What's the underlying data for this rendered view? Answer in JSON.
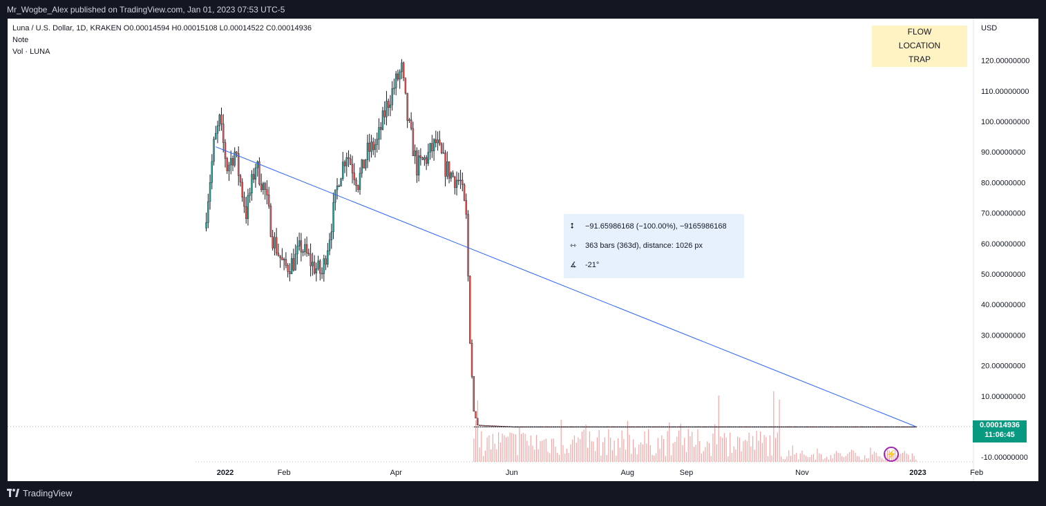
{
  "header": {
    "publish_line": "Mr_Wogbe_Alex published on TradingView.com, Jan 01, 2023 07:53 UTC-5"
  },
  "legend": {
    "ohlc": "Luna / U.S. Dollar, 1D, KRAKEN  O0.00014594  H0.00015108  L0.00014522  C0.00014936",
    "note": "Note",
    "volume": "Vol · LUNA"
  },
  "annotations": {
    "tags": [
      "FLOW",
      "LOCATION",
      "TRAP"
    ]
  },
  "measure": {
    "price_change": "−91.65986168 (−100.00%), −9165986168",
    "bars": "363 bars (363d), distance: 1026 px",
    "angle": "-21°",
    "icons": [
      "price-range-icon",
      "bar-range-icon",
      "angle-icon"
    ]
  },
  "price_tag": {
    "value": "0.00014936",
    "countdown": "11:06:45"
  },
  "footer": {
    "brand": "TradingView"
  },
  "colors": {
    "up": "#26a69a",
    "down": "#ef5350",
    "trendline": "#2962ff",
    "price_tag": "#089981",
    "tag_bg": "#fff3c4"
  },
  "chart_data": {
    "type": "candlestick",
    "currency": "USD",
    "y_ticks": [
      "120.00000000",
      "110.00000000",
      "100.00000000",
      "90.00000000",
      "80.00000000",
      "70.00000000",
      "60.00000000",
      "50.00000000",
      "40.00000000",
      "30.00000000",
      "20.00000000",
      "10.00000000",
      "-10.00000000"
    ],
    "ylim": [
      -10,
      120
    ],
    "x_ticks": [
      "2022",
      "Feb",
      "Apr",
      "Jun",
      "Aug",
      "Sep",
      "Nov",
      "2023",
      "Feb"
    ],
    "last_price": 0.00014936,
    "trendline": {
      "from": {
        "date": "2021-12-27",
        "price": 91.7
      },
      "to": {
        "date": "2022-12-31",
        "price": 0.00015
      }
    },
    "path_approx": [
      [
        "2021-12-21",
        65
      ],
      [
        "2021-12-26",
        92
      ],
      [
        "2021-12-29",
        100
      ],
      [
        "2022-01-02",
        85
      ],
      [
        "2022-01-06",
        90
      ],
      [
        "2022-01-12",
        70
      ],
      [
        "2022-01-17",
        86
      ],
      [
        "2022-01-22",
        77
      ],
      [
        "2022-01-26",
        62
      ],
      [
        "2022-02-01",
        52
      ],
      [
        "2022-02-06",
        54
      ],
      [
        "2022-02-10",
        59
      ],
      [
        "2022-02-16",
        53
      ],
      [
        "2022-02-21",
        50
      ],
      [
        "2022-02-25",
        63
      ],
      [
        "2022-03-02",
        82
      ],
      [
        "2022-03-06",
        90
      ],
      [
        "2022-03-12",
        80
      ],
      [
        "2022-03-17",
        90
      ],
      [
        "2022-03-22",
        93
      ],
      [
        "2022-03-27",
        105
      ],
      [
        "2022-04-01",
        113
      ],
      [
        "2022-04-04",
        117
      ],
      [
        "2022-04-07",
        101
      ],
      [
        "2022-04-12",
        85
      ],
      [
        "2022-04-17",
        88
      ],
      [
        "2022-04-22",
        93
      ],
      [
        "2022-04-27",
        85
      ],
      [
        "2022-05-01",
        82
      ],
      [
        "2022-05-05",
        80
      ],
      [
        "2022-05-08",
        68
      ],
      [
        "2022-05-10",
        30
      ],
      [
        "2022-05-12",
        5
      ],
      [
        "2022-05-14",
        0.5
      ],
      [
        "2022-06-01",
        0.0002
      ],
      [
        "2022-12-31",
        0.00015
      ]
    ]
  }
}
